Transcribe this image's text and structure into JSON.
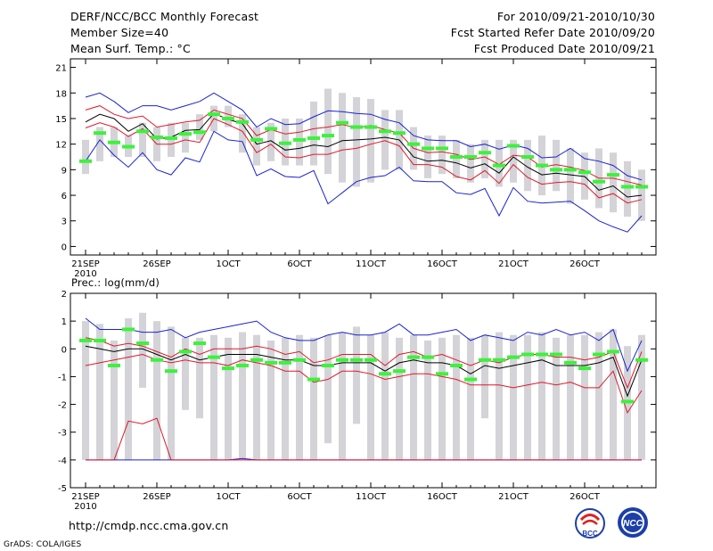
{
  "header": {
    "title": "DERF/NCC/BCC Monthly Forecast",
    "member_size": "Member Size=40",
    "variable1": "Mean Surf. Temp.: °C",
    "forecast_period": "For 2010/09/21-2010/10/30",
    "fcst_started": "Fcst Started Refer Date 2010/09/20",
    "fcst_produced": "Fcst Produced Date 2010/09/21"
  },
  "footer": {
    "url": "http://cmdp.ncc.cma.gov.cn",
    "credit": "GrADS: COLA/IGES",
    "logo_left_text": "BCC",
    "logo_right_text": "NCC"
  },
  "colors": {
    "box": "#d3d3d8",
    "median": "#000000",
    "inner": "#e0182a",
    "outer": "#1a22d0",
    "observed": "#3cf23c"
  },
  "chart_data": [
    {
      "type": "box-ensemble",
      "name": "temperature",
      "title": "Mean Surf. Temp.: °C",
      "ylabel": "°C",
      "ylim": [
        -1,
        22
      ],
      "yticks": [
        0,
        3,
        6,
        9,
        12,
        15,
        18,
        21
      ],
      "x_days": 40,
      "xtick_labels": [
        "21SEP",
        "26SEP",
        "1OCT",
        "6OCT",
        "11OCT",
        "16OCT",
        "21OCT",
        "26OCT"
      ],
      "xtick_days": [
        0,
        5,
        10,
        15,
        20,
        25,
        30,
        35
      ],
      "year_label": "2010",
      "box_top": [
        12.5,
        14,
        14,
        13,
        14.5,
        14,
        14.5,
        14.5,
        15.5,
        16.5,
        16.5,
        15.5,
        14,
        14.5,
        15,
        15,
        17,
        18.5,
        18,
        17.5,
        17.3,
        16,
        16,
        14,
        13,
        13,
        12.5,
        12,
        12.5,
        12.5,
        12.5,
        12.5,
        13,
        12.5,
        11.5,
        11,
        11.5,
        11,
        10,
        9
      ],
      "box_bottom": [
        8.5,
        10,
        10.5,
        10.5,
        10.5,
        10,
        10.5,
        11,
        12.5,
        13.5,
        14,
        11,
        9.5,
        10,
        9.5,
        9.5,
        9.5,
        8.5,
        7.5,
        7,
        7.5,
        9,
        9,
        9,
        8,
        8.5,
        8,
        7.5,
        8,
        7,
        7.5,
        6.5,
        6,
        6.5,
        5,
        5.5,
        4.5,
        4,
        3.5,
        3
      ],
      "outer_upper": [
        17.5,
        18,
        17,
        15.7,
        16.5,
        16.5,
        16,
        16.5,
        17,
        18,
        17,
        16,
        14,
        15,
        14.3,
        14.4,
        15.2,
        15.9,
        15.8,
        15.6,
        15.5,
        14.9,
        14.5,
        13,
        12.5,
        12.4,
        12.4,
        11.7,
        12,
        11.4,
        11.9,
        11.5,
        10.4,
        10.5,
        11.5,
        10.3,
        10,
        9.5,
        8.3,
        7.8
      ],
      "inner_upper": [
        16,
        16.5,
        15.5,
        15,
        15.3,
        14,
        14.3,
        14.6,
        14.8,
        16,
        15.5,
        15,
        13,
        13.7,
        13.2,
        13.4,
        13.8,
        14,
        14.3,
        13.9,
        14.2,
        13.7,
        13.3,
        11.5,
        11,
        11.1,
        10.8,
        10.2,
        10.5,
        9.6,
        10.7,
        10.5,
        9.3,
        9.6,
        9.3,
        8.9,
        8,
        8,
        7.6,
        7.2
      ],
      "median": [
        14.6,
        15.5,
        15,
        13.5,
        14.4,
        12.6,
        12.8,
        13.6,
        13.7,
        15.6,
        14.9,
        14.4,
        12,
        12.4,
        11.3,
        11.5,
        11.9,
        11.7,
        12.4,
        12.5,
        12.6,
        12.8,
        12.5,
        10.5,
        10,
        10.1,
        9.8,
        9.2,
        9.7,
        8.6,
        10.5,
        9.3,
        8.4,
        8.6,
        8.4,
        8.2,
        6.6,
        7.1,
        5.8,
        6
      ],
      "inner_lower": [
        13.9,
        14.5,
        14,
        12.9,
        13.8,
        12,
        12,
        12.5,
        12.2,
        15,
        14.3,
        13.5,
        11,
        12,
        10.5,
        10.4,
        10.8,
        10.8,
        11.3,
        11.5,
        12,
        12.4,
        11.8,
        9.6,
        9.6,
        9.3,
        8.2,
        7.8,
        8.9,
        7.4,
        9.6,
        8.1,
        7.3,
        7.5,
        7.6,
        7.3,
        5.7,
        6.2,
        5.1,
        5.5
      ],
      "outer_lower": [
        10,
        12.5,
        10.7,
        9.3,
        11,
        9,
        8.4,
        10.4,
        9.9,
        13.5,
        12.5,
        12.3,
        8.3,
        9.1,
        8.2,
        8.1,
        8.9,
        5,
        6.3,
        7.6,
        8.1,
        8.3,
        9.3,
        7.7,
        7.6,
        7.6,
        6.3,
        6.1,
        6.8,
        3.6,
        6.9,
        5.3,
        5.1,
        5.2,
        5.3,
        4.2,
        3,
        2.3,
        1.7,
        3.6
      ],
      "observed": [
        10,
        13.3,
        12.2,
        11.7,
        13.5,
        12.8,
        12.7,
        13.2,
        13.4,
        15.5,
        15,
        14.6,
        12.5,
        13.8,
        12.1,
        12.5,
        12.7,
        13,
        14.5,
        14,
        14,
        13.5,
        13.3,
        12,
        11.5,
        11.5,
        10.5,
        10.5,
        11,
        9.5,
        11.8,
        10.5,
        9.5,
        9,
        9,
        8.7,
        7.6,
        8.4,
        7,
        7
      ]
    },
    {
      "type": "box-ensemble",
      "name": "precipitation",
      "title": "Prec.: log(mm/d)",
      "ylabel": "log(mm/d)",
      "ylim": [
        -5,
        2
      ],
      "yticks": [
        -5,
        -4,
        -3,
        -2,
        -1,
        0,
        1,
        2
      ],
      "x_days": 40,
      "xtick_labels": [
        "21SEP",
        "26SEP",
        "1OCT",
        "6OCT",
        "11OCT",
        "16OCT",
        "21OCT",
        "26OCT"
      ],
      "xtick_days": [
        0,
        5,
        10,
        15,
        20,
        25,
        30,
        35
      ],
      "year_label": "2010",
      "box_top": [
        1,
        0.9,
        0.3,
        1.1,
        1.3,
        1.0,
        0.8,
        0.4,
        0.4,
        0.5,
        0.4,
        0.6,
        0.5,
        0.3,
        0.4,
        0.5,
        0.4,
        0.5,
        0.6,
        0.8,
        0.5,
        0.6,
        0.4,
        0.5,
        0.3,
        0.4,
        0.5,
        0.4,
        0.5,
        0.6,
        0.5,
        0.5,
        0.6,
        0.4,
        0.5,
        0.5,
        0.6,
        0.7,
        0.1,
        0.5
      ],
      "box_bottom": [
        -4,
        -4,
        -4,
        -4,
        -1.4,
        -4,
        -4,
        -2.2,
        -2.5,
        -4,
        -4,
        -4,
        -4,
        -4,
        -4,
        -4,
        -4,
        -3.4,
        -4,
        -2.7,
        -4,
        -4,
        -4,
        -4,
        -4,
        -4,
        -4,
        -4,
        -2.5,
        -4,
        -4,
        -4,
        -4,
        -4,
        -4,
        -4,
        -4,
        -4,
        -4,
        -4
      ],
      "outer_upper": [
        1.1,
        0.7,
        0.7,
        0.7,
        0.6,
        0.6,
        0.7,
        0.4,
        0.6,
        0.7,
        0.8,
        0.9,
        1.0,
        0.6,
        0.4,
        0.3,
        0.3,
        0.5,
        0.6,
        0.5,
        0.5,
        0.6,
        0.9,
        0.5,
        0.5,
        0.6,
        0.7,
        0.3,
        0.5,
        0.4,
        0.3,
        0.6,
        0.5,
        0.7,
        0.5,
        0.6,
        0.3,
        0.7,
        -0.8,
        0.3
      ],
      "inner_upper": [
        0.4,
        0.3,
        0.1,
        0.2,
        0.1,
        -0.1,
        -0.3,
        0.0,
        -0.2,
        0.0,
        0.0,
        0.0,
        0.1,
        0.0,
        -0.2,
        -0.1,
        -0.5,
        -0.4,
        -0.2,
        -0.2,
        -0.2,
        -0.6,
        -0.2,
        -0.1,
        -0.3,
        -0.2,
        -0.4,
        -0.6,
        -0.4,
        -0.5,
        -0.3,
        -0.2,
        -0.2,
        -0.3,
        -0.3,
        -0.4,
        -0.3,
        -0.1,
        -1.4,
        -0.1
      ],
      "median": [
        0.1,
        0.0,
        -0.1,
        0.0,
        0.0,
        -0.2,
        -0.4,
        -0.2,
        -0.4,
        -0.3,
        -0.2,
        -0.2,
        -0.2,
        -0.3,
        -0.4,
        -0.4,
        -0.6,
        -0.6,
        -0.5,
        -0.5,
        -0.5,
        -0.8,
        -0.5,
        -0.4,
        -0.5,
        -0.5,
        -0.6,
        -0.9,
        -0.6,
        -0.7,
        -0.6,
        -0.5,
        -0.4,
        -0.6,
        -0.6,
        -0.6,
        -0.5,
        -0.3,
        -1.7,
        -0.4
      ],
      "inner_lower": [
        -4,
        -4,
        -4,
        -2.6,
        -2.7,
        -2.5,
        -4,
        -4,
        -4,
        -4,
        -4,
        -4,
        -4,
        -4,
        -4,
        -4,
        -4,
        -4,
        -4,
        -4,
        -4,
        -4,
        -4,
        -4,
        -4,
        -4,
        -4,
        -4,
        -4,
        -4,
        -4,
        -4,
        -4,
        -4,
        -4,
        -4,
        -4,
        -4,
        -4,
        -4
      ],
      "inner_lower_line": [
        -0.6,
        -0.5,
        -0.4,
        -0.3,
        -0.2,
        -0.4,
        -0.5,
        -0.4,
        -0.5,
        -0.5,
        -0.6,
        -0.4,
        -0.5,
        -0.6,
        -0.8,
        -0.8,
        -1.2,
        -1.1,
        -0.8,
        -0.8,
        -0.9,
        -1.1,
        -1.0,
        -0.9,
        -0.9,
        -1.0,
        -1.1,
        -1.3,
        -1.3,
        -1.3,
        -1.4,
        -1.3,
        -1.2,
        -1.3,
        -1.2,
        -1.4,
        -1.4,
        -0.8,
        -2.3,
        -1.5
      ],
      "outer_lower": [
        -4,
        -4,
        -4,
        -4,
        -4,
        -4,
        -4,
        -4,
        -4,
        -4,
        -4,
        -3.95,
        -4,
        -4,
        -4,
        -4,
        -4,
        -4,
        -4,
        -4,
        -4,
        -4,
        -4,
        -4,
        -4,
        -4,
        -4,
        -4,
        -4,
        -4,
        -4,
        -4,
        -4,
        -4,
        -4,
        -4,
        -4,
        -4,
        -4,
        -4
      ],
      "observed": [
        0.3,
        0.3,
        -0.6,
        0.7,
        0.2,
        -0.4,
        -0.8,
        -0.1,
        0.2,
        -0.3,
        -0.7,
        -0.6,
        -0.4,
        -0.5,
        -0.5,
        -0.4,
        -1.1,
        -0.6,
        -0.4,
        -0.4,
        -0.4,
        -0.9,
        -0.8,
        -0.3,
        -0.3,
        -0.9,
        -0.6,
        -1.1,
        -0.4,
        -0.4,
        -0.3,
        -0.2,
        -0.2,
        -0.2,
        -0.5,
        -0.7,
        -0.2,
        -0.1,
        -1.9,
        -0.4
      ]
    }
  ]
}
